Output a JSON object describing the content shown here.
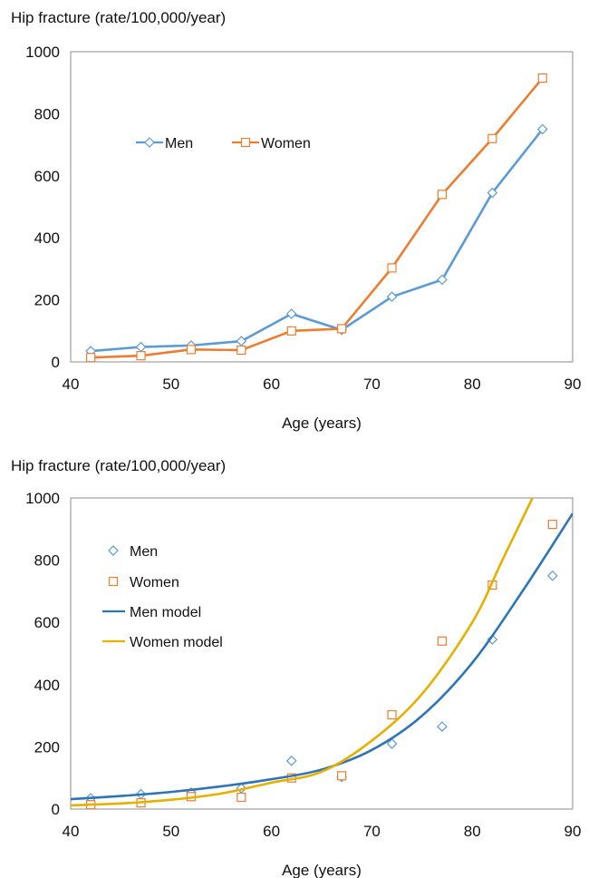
{
  "chart_data": [
    {
      "type": "line",
      "title": "",
      "ylabel": "Hip fracture (rate/100,000/year)",
      "xlabel": "Age (years)",
      "xlim": [
        40,
        90
      ],
      "ylim": [
        0,
        1000
      ],
      "xticks": [
        "40",
        "50",
        "60",
        "70",
        "80",
        "90"
      ],
      "yticks": [
        "0",
        "200",
        "400",
        "600",
        "800",
        "1000"
      ],
      "grid": false,
      "legend": "upper-left inside plot",
      "series": [
        {
          "name": "Men",
          "color": "#5b9bd5",
          "marker": "diamond",
          "x": [
            42,
            47,
            52,
            57,
            62,
            67,
            72,
            77,
            82,
            87
          ],
          "y": [
            35,
            48,
            53,
            67,
            155,
            103,
            210,
            265,
            545,
            750
          ]
        },
        {
          "name": "Women",
          "color": "#ed7d31",
          "marker": "square",
          "x": [
            42,
            47,
            52,
            57,
            62,
            67,
            72,
            77,
            82,
            87
          ],
          "y": [
            14,
            20,
            40,
            38,
            100,
            107,
            303,
            540,
            720,
            915
          ]
        }
      ]
    },
    {
      "type": "scatter",
      "title": "",
      "ylabel": "Hip fracture (rate/100,000/year)",
      "xlabel": "Age (years)",
      "xlim": [
        40,
        90
      ],
      "ylim": [
        0,
        1000
      ],
      "xticks": [
        "40",
        "50",
        "60",
        "70",
        "80",
        "90"
      ],
      "yticks": [
        "0",
        "200",
        "400",
        "600",
        "800",
        "1000"
      ],
      "grid": false,
      "legend": "upper-left inside plot",
      "series": [
        {
          "name": "Men",
          "color": "#5b9bd5",
          "marker": "diamond",
          "x": [
            42,
            47,
            52,
            57,
            62,
            67,
            72,
            77,
            82,
            88
          ],
          "y": [
            35,
            48,
            53,
            67,
            155,
            103,
            210,
            265,
            545,
            750
          ]
        },
        {
          "name": "Women",
          "color": "#ed7d31",
          "marker": "square",
          "x": [
            42,
            47,
            52,
            57,
            62,
            67,
            72,
            77,
            82,
            88
          ],
          "y": [
            14,
            20,
            40,
            38,
            100,
            107,
            303,
            540,
            720,
            915
          ]
        },
        {
          "name": "Men model",
          "color": "#2e75b6",
          "type": "line",
          "x": [
            40,
            45,
            50,
            55,
            60,
            65,
            70,
            75,
            80,
            85,
            90
          ],
          "y": [
            32,
            42,
            55,
            73,
            96,
            127,
            190,
            300,
            470,
            700,
            950
          ]
        },
        {
          "name": "Women model",
          "color": "#e6b000",
          "type": "line",
          "x": [
            40,
            45,
            50,
            55,
            60,
            65,
            70,
            75,
            80,
            83,
            86
          ],
          "y": [
            12,
            18,
            30,
            50,
            85,
            120,
            220,
            370,
            600,
            800,
            1000
          ]
        }
      ]
    }
  ]
}
